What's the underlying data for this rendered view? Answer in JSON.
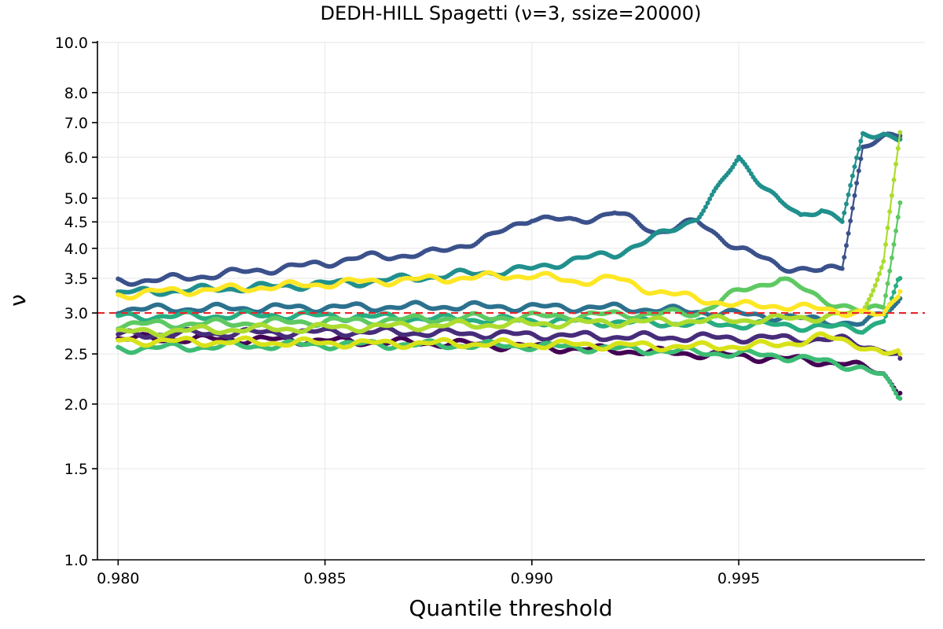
{
  "chart_data": {
    "type": "line",
    "title": "DEDH-HILL Spagetti (ν=3, ssize=20000)",
    "xlabel": "Quantile threshold",
    "ylabel": "ν",
    "xlim": [
      0.9795,
      0.9995
    ],
    "ylim": [
      1.0,
      10.0
    ],
    "yscale": "log",
    "grid": true,
    "legend": "none",
    "x_ticks": [
      0.98,
      0.985,
      0.99,
      0.995
    ],
    "x_tick_labels": [
      "0.980",
      "0.985",
      "0.990",
      "0.995"
    ],
    "y_ticks": [
      1.0,
      1.5,
      2.0,
      2.5,
      3.0,
      3.5,
      4.0,
      4.5,
      5.0,
      6.0,
      7.0,
      8.0,
      10.0
    ],
    "y_tick_labels": [
      "1.0",
      "1.5",
      "2.0",
      "2.5",
      "3.0",
      "3.5",
      "4.0",
      "4.5",
      "5.0",
      "6.0",
      "7.0",
      "8.0",
      "10.0"
    ],
    "reference_line": {
      "y": 3.0,
      "color": "#e8262b",
      "style": "dashed"
    },
    "series": [
      {
        "color": "#440154",
        "x": [
          0.98,
          0.982,
          0.984,
          0.986,
          0.988,
          0.99,
          0.992,
          0.994,
          0.996,
          0.9975,
          0.998,
          0.9985,
          0.9989
        ],
        "values": [
          2.68,
          2.67,
          2.66,
          2.64,
          2.62,
          2.58,
          2.54,
          2.5,
          2.45,
          2.4,
          2.35,
          2.3,
          2.1
        ]
      },
      {
        "color": "#472c7a",
        "x": [
          0.98,
          0.982,
          0.984,
          0.986,
          0.988,
          0.99,
          0.992,
          0.994,
          0.996,
          0.9975,
          0.998,
          0.9985,
          0.9989
        ],
        "values": [
          2.72,
          2.74,
          2.75,
          2.76,
          2.74,
          2.72,
          2.7,
          2.69,
          2.68,
          2.66,
          2.6,
          2.55,
          2.45
        ]
      },
      {
        "color": "#3b518b",
        "x": [
          0.98,
          0.9815,
          0.983,
          0.9845,
          0.986,
          0.9875,
          0.989,
          0.99,
          0.991,
          0.992,
          0.993,
          0.994,
          0.995,
          0.996,
          0.997,
          0.9975,
          0.998,
          0.9985,
          0.9989
        ],
        "values": [
          3.45,
          3.5,
          3.6,
          3.7,
          3.85,
          3.9,
          4.2,
          4.6,
          4.5,
          4.7,
          4.3,
          4.5,
          4.0,
          3.7,
          3.6,
          3.7,
          6.3,
          6.5,
          6.6
        ]
      },
      {
        "color": "#2c718e",
        "x": [
          0.98,
          0.982,
          0.984,
          0.986,
          0.988,
          0.99,
          0.992,
          0.994,
          0.996,
          0.997,
          0.998,
          0.9985,
          0.9989
        ],
        "values": [
          3.05,
          3.06,
          3.07,
          3.08,
          3.09,
          3.08,
          3.07,
          3.02,
          2.95,
          2.9,
          2.85,
          3.0,
          3.2
        ]
      },
      {
        "color": "#21908d",
        "x": [
          0.98,
          0.982,
          0.984,
          0.986,
          0.988,
          0.99,
          0.991,
          0.992,
          0.993,
          0.994,
          0.9945,
          0.995,
          0.9955,
          0.996,
          0.9965,
          0.997,
          0.9975,
          0.998,
          0.9985,
          0.9989
        ],
        "values": [
          3.28,
          3.33,
          3.38,
          3.45,
          3.55,
          3.65,
          3.8,
          3.9,
          4.2,
          4.6,
          5.2,
          6.0,
          5.4,
          4.9,
          4.6,
          4.8,
          4.5,
          6.6,
          6.7,
          6.5
        ]
      },
      {
        "color": "#27ad81",
        "x": [
          0.98,
          0.982,
          0.984,
          0.986,
          0.988,
          0.99,
          0.992,
          0.994,
          0.996,
          0.997,
          0.998,
          0.9985,
          0.9989
        ],
        "values": [
          2.95,
          2.96,
          2.97,
          2.95,
          2.92,
          2.9,
          2.88,
          2.86,
          2.84,
          2.82,
          2.8,
          2.9,
          3.5
        ]
      },
      {
        "color": "#3dbc74",
        "x": [
          0.98,
          0.982,
          0.984,
          0.986,
          0.988,
          0.99,
          0.992,
          0.994,
          0.996,
          0.997,
          0.998,
          0.9985,
          0.9989
        ],
        "values": [
          2.56,
          2.58,
          2.6,
          2.61,
          2.6,
          2.59,
          2.56,
          2.52,
          2.48,
          2.42,
          2.35,
          2.25,
          2.05
        ]
      },
      {
        "color": "#5ec962",
        "x": [
          0.98,
          0.982,
          0.984,
          0.986,
          0.988,
          0.99,
          0.992,
          0.994,
          0.995,
          0.996,
          0.997,
          0.998,
          0.9985,
          0.9989
        ],
        "values": [
          2.85,
          2.86,
          2.88,
          2.9,
          2.93,
          2.95,
          2.98,
          3.0,
          3.3,
          3.5,
          3.2,
          3.0,
          3.1,
          4.9
        ]
      },
      {
        "color": "#addc30",
        "x": [
          0.98,
          0.982,
          0.984,
          0.986,
          0.988,
          0.99,
          0.992,
          0.994,
          0.996,
          0.997,
          0.998,
          0.9985,
          0.9989
        ],
        "values": [
          2.75,
          2.78,
          2.8,
          2.82,
          2.84,
          2.86,
          2.88,
          2.9,
          2.92,
          2.95,
          3.0,
          3.8,
          6.7
        ]
      },
      {
        "color": "#d8e219",
        "x": [
          0.98,
          0.982,
          0.984,
          0.986,
          0.988,
          0.99,
          0.992,
          0.994,
          0.996,
          0.997,
          0.998,
          0.9985,
          0.9989
        ],
        "values": [
          2.65,
          2.64,
          2.63,
          2.62,
          2.62,
          2.61,
          2.6,
          2.58,
          2.6,
          2.7,
          2.6,
          2.5,
          2.5
        ]
      },
      {
        "color": "#fde725",
        "x": [
          0.98,
          0.981,
          0.982,
          0.984,
          0.986,
          0.988,
          0.99,
          0.991,
          0.992,
          0.993,
          0.994,
          0.995,
          0.996,
          0.997,
          0.998,
          0.9985,
          0.9989
        ],
        "values": [
          3.25,
          3.3,
          3.32,
          3.38,
          3.45,
          3.5,
          3.55,
          3.45,
          3.5,
          3.3,
          3.2,
          3.1,
          3.1,
          3.05,
          3.0,
          2.95,
          3.3
        ]
      }
    ]
  }
}
